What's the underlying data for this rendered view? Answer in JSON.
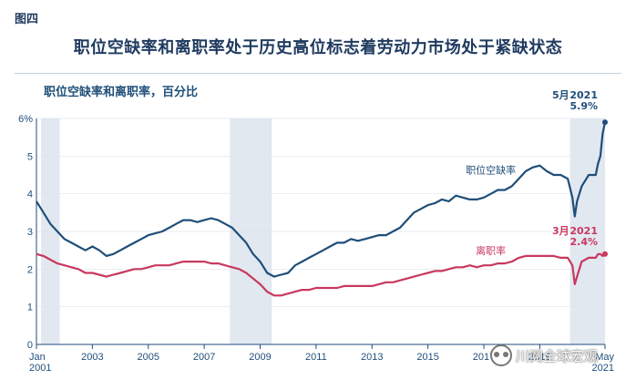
{
  "figure": {
    "label": "图四",
    "title": "职位空缺率和离职率处于历史高位标志着劳动力市场处于紧缺状态",
    "subtitle": "职位空缺率和离职率，百分比"
  },
  "colors": {
    "openings": "#1f4e79",
    "quits": "#c8385f",
    "recession": "#e1e8f0",
    "axis": "#1f4e79",
    "grid": "#dfe5ec"
  },
  "watermark": {
    "text": "川阅全球宏观",
    "icon": "wechat-icon"
  },
  "chart_data": {
    "type": "line",
    "x_unit": "month",
    "xlim": [
      "2001-01",
      "2021-05"
    ],
    "ylim": [
      0,
      6
    ],
    "y_ticks": [
      {
        "value": 0,
        "label": "0"
      },
      {
        "value": 1,
        "label": "1"
      },
      {
        "value": 2,
        "label": "2"
      },
      {
        "value": 3,
        "label": "3"
      },
      {
        "value": 4,
        "label": "4"
      },
      {
        "value": 5,
        "label": "5"
      },
      {
        "value": 6,
        "label": "6%"
      }
    ],
    "x_ticks": [
      {
        "date": "2001-01",
        "label": "Jan",
        "label2": "2001"
      },
      {
        "date": "2003-01",
        "label": "2003",
        "label2": ""
      },
      {
        "date": "2005-01",
        "label": "2005",
        "label2": ""
      },
      {
        "date": "2007-01",
        "label": "2007",
        "label2": ""
      },
      {
        "date": "2009-01",
        "label": "2009",
        "label2": ""
      },
      {
        "date": "2011-01",
        "label": "2011",
        "label2": ""
      },
      {
        "date": "2013-01",
        "label": "2013",
        "label2": ""
      },
      {
        "date": "2015-01",
        "label": "2015",
        "label2": ""
      },
      {
        "date": "2017-01",
        "label": "2017",
        "label2": ""
      },
      {
        "date": "2019-01",
        "label": "2019",
        "label2": ""
      },
      {
        "date": "2021-05",
        "label": "May",
        "label2": "2021"
      }
    ],
    "grid": true,
    "recessions": [
      {
        "start": "2001-03",
        "end": "2001-11"
      },
      {
        "start": "2007-12",
        "end": "2009-06"
      },
      {
        "start": "2020-02",
        "end": "2021-05"
      }
    ],
    "series": [
      {
        "name": "职位空缺率",
        "color": "#1f4e79",
        "label_at": "2016-06",
        "points": [
          [
            "2001-01",
            3.8
          ],
          [
            "2001-04",
            3.5
          ],
          [
            "2001-07",
            3.2
          ],
          [
            "2001-10",
            3.0
          ],
          [
            "2002-01",
            2.8
          ],
          [
            "2002-04",
            2.7
          ],
          [
            "2002-07",
            2.6
          ],
          [
            "2002-10",
            2.5
          ],
          [
            "2003-01",
            2.6
          ],
          [
            "2003-04",
            2.5
          ],
          [
            "2003-07",
            2.35
          ],
          [
            "2003-10",
            2.4
          ],
          [
            "2004-01",
            2.5
          ],
          [
            "2004-04",
            2.6
          ],
          [
            "2004-07",
            2.7
          ],
          [
            "2004-10",
            2.8
          ],
          [
            "2005-01",
            2.9
          ],
          [
            "2005-04",
            2.95
          ],
          [
            "2005-07",
            3.0
          ],
          [
            "2005-10",
            3.1
          ],
          [
            "2006-01",
            3.2
          ],
          [
            "2006-04",
            3.3
          ],
          [
            "2006-07",
            3.3
          ],
          [
            "2006-10",
            3.25
          ],
          [
            "2007-01",
            3.3
          ],
          [
            "2007-04",
            3.35
          ],
          [
            "2007-07",
            3.3
          ],
          [
            "2007-10",
            3.2
          ],
          [
            "2008-01",
            3.1
          ],
          [
            "2008-04",
            2.9
          ],
          [
            "2008-07",
            2.7
          ],
          [
            "2008-10",
            2.4
          ],
          [
            "2009-01",
            2.2
          ],
          [
            "2009-04",
            1.9
          ],
          [
            "2009-07",
            1.8
          ],
          [
            "2009-10",
            1.85
          ],
          [
            "2010-01",
            1.9
          ],
          [
            "2010-04",
            2.1
          ],
          [
            "2010-07",
            2.2
          ],
          [
            "2010-10",
            2.3
          ],
          [
            "2011-01",
            2.4
          ],
          [
            "2011-04",
            2.5
          ],
          [
            "2011-07",
            2.6
          ],
          [
            "2011-10",
            2.7
          ],
          [
            "2012-01",
            2.7
          ],
          [
            "2012-04",
            2.8
          ],
          [
            "2012-07",
            2.75
          ],
          [
            "2012-10",
            2.8
          ],
          [
            "2013-01",
            2.85
          ],
          [
            "2013-04",
            2.9
          ],
          [
            "2013-07",
            2.9
          ],
          [
            "2013-10",
            3.0
          ],
          [
            "2014-01",
            3.1
          ],
          [
            "2014-04",
            3.3
          ],
          [
            "2014-07",
            3.5
          ],
          [
            "2014-10",
            3.6
          ],
          [
            "2015-01",
            3.7
          ],
          [
            "2015-04",
            3.75
          ],
          [
            "2015-07",
            3.85
          ],
          [
            "2015-10",
            3.8
          ],
          [
            "2016-01",
            3.95
          ],
          [
            "2016-04",
            3.9
          ],
          [
            "2016-07",
            3.85
          ],
          [
            "2016-10",
            3.85
          ],
          [
            "2017-01",
            3.9
          ],
          [
            "2017-04",
            4.0
          ],
          [
            "2017-07",
            4.1
          ],
          [
            "2017-10",
            4.1
          ],
          [
            "2018-01",
            4.2
          ],
          [
            "2018-04",
            4.4
          ],
          [
            "2018-07",
            4.6
          ],
          [
            "2018-10",
            4.7
          ],
          [
            "2019-01",
            4.75
          ],
          [
            "2019-04",
            4.6
          ],
          [
            "2019-07",
            4.5
          ],
          [
            "2019-10",
            4.5
          ],
          [
            "2020-01",
            4.4
          ],
          [
            "2020-03",
            3.9
          ],
          [
            "2020-04",
            3.4
          ],
          [
            "2020-05",
            3.8
          ],
          [
            "2020-07",
            4.2
          ],
          [
            "2020-10",
            4.5
          ],
          [
            "2021-01",
            4.5
          ],
          [
            "2021-02",
            4.8
          ],
          [
            "2021-03",
            5.0
          ],
          [
            "2021-04",
            5.6
          ],
          [
            "2021-05",
            5.9
          ]
        ]
      },
      {
        "name": "离职率",
        "color": "#c8385f",
        "label_at": "2016-02",
        "points": [
          [
            "2001-01",
            2.4
          ],
          [
            "2001-04",
            2.35
          ],
          [
            "2001-07",
            2.25
          ],
          [
            "2001-10",
            2.15
          ],
          [
            "2002-01",
            2.1
          ],
          [
            "2002-04",
            2.05
          ],
          [
            "2002-07",
            2.0
          ],
          [
            "2002-10",
            1.9
          ],
          [
            "2003-01",
            1.9
          ],
          [
            "2003-04",
            1.85
          ],
          [
            "2003-07",
            1.8
          ],
          [
            "2003-10",
            1.85
          ],
          [
            "2004-01",
            1.9
          ],
          [
            "2004-04",
            1.95
          ],
          [
            "2004-07",
            2.0
          ],
          [
            "2004-10",
            2.0
          ],
          [
            "2005-01",
            2.05
          ],
          [
            "2005-04",
            2.1
          ],
          [
            "2005-07",
            2.1
          ],
          [
            "2005-10",
            2.1
          ],
          [
            "2006-01",
            2.15
          ],
          [
            "2006-04",
            2.2
          ],
          [
            "2006-07",
            2.2
          ],
          [
            "2006-10",
            2.2
          ],
          [
            "2007-01",
            2.2
          ],
          [
            "2007-04",
            2.15
          ],
          [
            "2007-07",
            2.15
          ],
          [
            "2007-10",
            2.1
          ],
          [
            "2008-01",
            2.05
          ],
          [
            "2008-04",
            2.0
          ],
          [
            "2008-07",
            1.9
          ],
          [
            "2008-10",
            1.75
          ],
          [
            "2009-01",
            1.6
          ],
          [
            "2009-04",
            1.4
          ],
          [
            "2009-07",
            1.3
          ],
          [
            "2009-10",
            1.3
          ],
          [
            "2010-01",
            1.35
          ],
          [
            "2010-04",
            1.4
          ],
          [
            "2010-07",
            1.45
          ],
          [
            "2010-10",
            1.45
          ],
          [
            "2011-01",
            1.5
          ],
          [
            "2011-04",
            1.5
          ],
          [
            "2011-07",
            1.5
          ],
          [
            "2011-10",
            1.5
          ],
          [
            "2012-01",
            1.55
          ],
          [
            "2012-04",
            1.55
          ],
          [
            "2012-07",
            1.55
          ],
          [
            "2012-10",
            1.55
          ],
          [
            "2013-01",
            1.55
          ],
          [
            "2013-04",
            1.6
          ],
          [
            "2013-07",
            1.65
          ],
          [
            "2013-10",
            1.65
          ],
          [
            "2014-01",
            1.7
          ],
          [
            "2014-04",
            1.75
          ],
          [
            "2014-07",
            1.8
          ],
          [
            "2014-10",
            1.85
          ],
          [
            "2015-01",
            1.9
          ],
          [
            "2015-04",
            1.95
          ],
          [
            "2015-07",
            1.95
          ],
          [
            "2015-10",
            2.0
          ],
          [
            "2016-01",
            2.05
          ],
          [
            "2016-04",
            2.05
          ],
          [
            "2016-07",
            2.1
          ],
          [
            "2016-10",
            2.05
          ],
          [
            "2017-01",
            2.1
          ],
          [
            "2017-04",
            2.1
          ],
          [
            "2017-07",
            2.15
          ],
          [
            "2017-10",
            2.15
          ],
          [
            "2018-01",
            2.2
          ],
          [
            "2018-04",
            2.3
          ],
          [
            "2018-07",
            2.35
          ],
          [
            "2018-10",
            2.35
          ],
          [
            "2019-01",
            2.35
          ],
          [
            "2019-04",
            2.35
          ],
          [
            "2019-07",
            2.35
          ],
          [
            "2019-10",
            2.3
          ],
          [
            "2020-01",
            2.3
          ],
          [
            "2020-03",
            2.1
          ],
          [
            "2020-04",
            1.6
          ],
          [
            "2020-05",
            1.8
          ],
          [
            "2020-07",
            2.2
          ],
          [
            "2020-10",
            2.3
          ],
          [
            "2021-01",
            2.3
          ],
          [
            "2021-02",
            2.4
          ],
          [
            "2021-03",
            2.4
          ],
          [
            "2021-04",
            2.35
          ],
          [
            "2021-05",
            2.4
          ]
        ]
      }
    ],
    "annotations": [
      {
        "series": 0,
        "month": "5月",
        "year": "2021",
        "value": "5.9%"
      },
      {
        "series": 1,
        "month": "3月",
        "year": "2021",
        "value": "2.4%"
      }
    ]
  }
}
